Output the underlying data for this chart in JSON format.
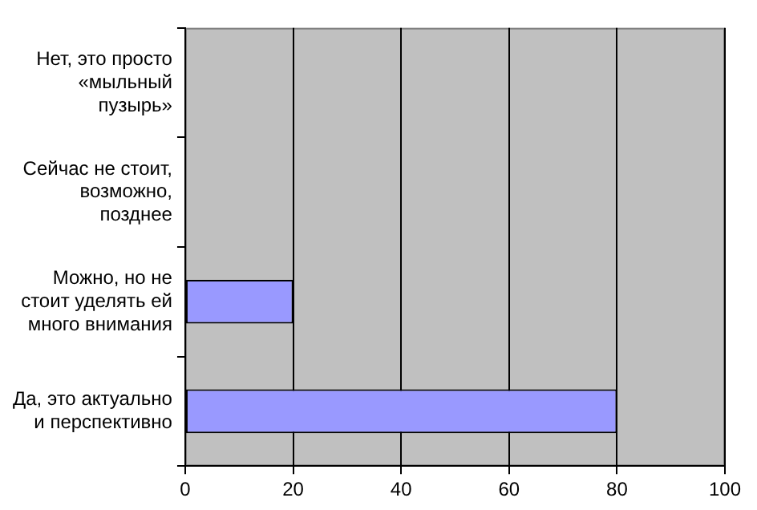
{
  "chart_data": {
    "type": "bar",
    "orientation": "horizontal",
    "categories": [
      "Нет, это просто «мыльный пузырь»",
      "Сейчас не стоит, возможно, позднее",
      "Можно, но не стоит уделять ей много внимания",
      "Да, это актуально и перспективно"
    ],
    "values": [
      0,
      0,
      20,
      80
    ],
    "color": "#9999ff",
    "xlim": [
      0,
      100
    ],
    "xticks": [
      0,
      20,
      40,
      60,
      80,
      100
    ],
    "grid": "x",
    "legend": false
  }
}
